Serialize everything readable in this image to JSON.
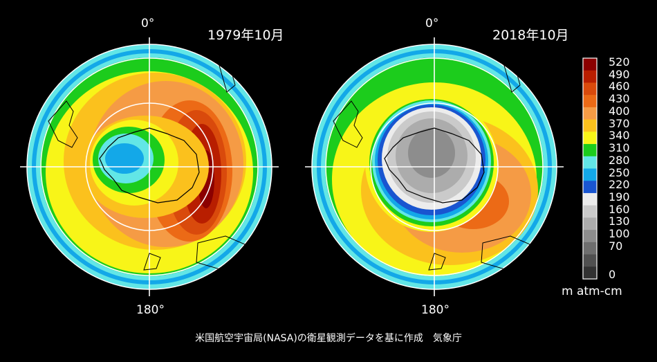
{
  "chart_data": [
    {
      "type": "heatmap",
      "title": "1979年10月",
      "top_label": "0°",
      "bottom_label": "180°"
    },
    {
      "type": "heatmap",
      "title": "2018年10月",
      "top_label": "0°",
      "bottom_label": "180°"
    }
  ],
  "colorbar": {
    "unit": "m atm-cm",
    "levels": [
      {
        "label": "520",
        "color": "#8b0000"
      },
      {
        "label": "490",
        "color": "#b81e00"
      },
      {
        "label": "460",
        "color": "#d94a0c"
      },
      {
        "label": "430",
        "color": "#ec6a16"
      },
      {
        "label": "400",
        "color": "#f59b45"
      },
      {
        "label": "370",
        "color": "#fbc11d"
      },
      {
        "label": "340",
        "color": "#f8f518"
      },
      {
        "label": "310",
        "color": "#1ccc1c"
      },
      {
        "label": "280",
        "color": "#62e6e6"
      },
      {
        "label": "250",
        "color": "#13a8e8"
      },
      {
        "label": "220",
        "color": "#1955d0"
      },
      {
        "label": "190",
        "color": "#ececec"
      },
      {
        "label": "160",
        "color": "#cacaca"
      },
      {
        "label": "130",
        "color": "#acacac"
      },
      {
        "label": "100",
        "color": "#8d8d8d"
      },
      {
        "label": "70",
        "color": "#6e6e6e"
      },
      {
        "label": "",
        "color": "#505050"
      },
      {
        "label": "0",
        "color": "#323232"
      }
    ]
  },
  "caption": "米国航空宇宙局(NASA)の衛星観測データを基に作成　気象庁"
}
